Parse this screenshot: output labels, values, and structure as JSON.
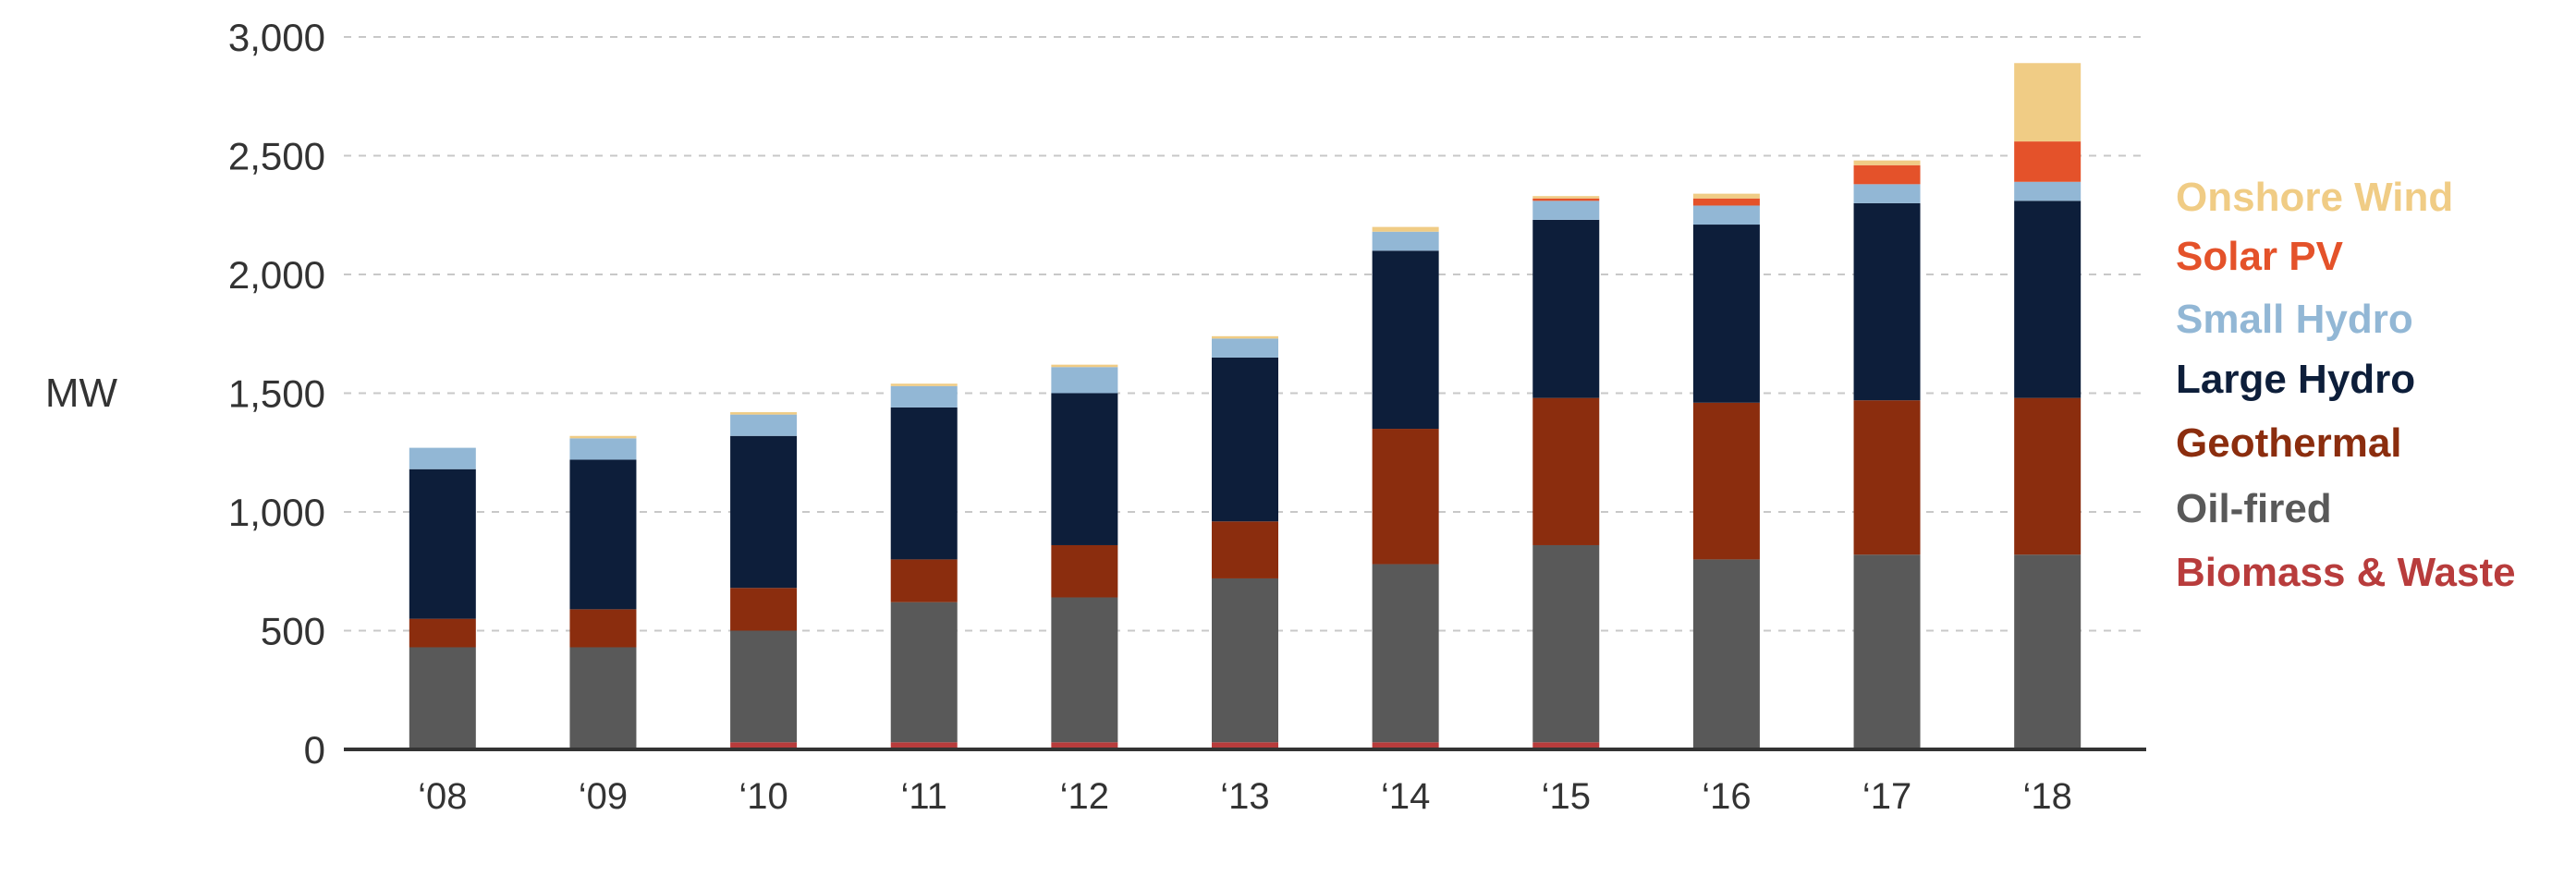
{
  "chart_data": {
    "type": "bar",
    "stacked": true,
    "ylabel": "MW",
    "xlabel": "",
    "ylim": [
      0,
      3000
    ],
    "yticks": [
      0,
      500,
      1000,
      1500,
      2000,
      2500,
      3000
    ],
    "ytick_labels": [
      "0",
      "500",
      "1,000",
      "1,500",
      "2,000",
      "2,500",
      "3,000"
    ],
    "grid": "horizontal dashed",
    "legend_position": "right",
    "categories": [
      "‘08",
      "‘09",
      "‘10",
      "‘11",
      "‘12",
      "‘13",
      "‘14",
      "‘15",
      "‘16",
      "‘17",
      "‘18"
    ],
    "series": [
      {
        "name": "Biomass & Waste",
        "color": "#b83c3c",
        "values": [
          0,
          0,
          30,
          30,
          30,
          30,
          30,
          30,
          0,
          0,
          0
        ]
      },
      {
        "name": "Oil-fired",
        "color": "#595959",
        "values": [
          430,
          430,
          470,
          590,
          610,
          690,
          750,
          830,
          800,
          820,
          820
        ]
      },
      {
        "name": "Geothermal",
        "color": "#8b2d0e",
        "values": [
          120,
          160,
          180,
          180,
          220,
          240,
          570,
          620,
          660,
          650,
          660
        ]
      },
      {
        "name": "Large Hydro",
        "color": "#0d1e3a",
        "values": [
          630,
          630,
          640,
          640,
          640,
          690,
          750,
          750,
          750,
          830,
          830
        ]
      },
      {
        "name": "Small Hydro",
        "color": "#92b7d5",
        "values": [
          90,
          90,
          90,
          90,
          110,
          80,
          80,
          80,
          80,
          80,
          80
        ]
      },
      {
        "name": "Solar PV",
        "color": "#e4522a",
        "values": [
          0,
          0,
          0,
          0,
          0,
          0,
          0,
          10,
          30,
          80,
          170
        ]
      },
      {
        "name": "Onshore Wind",
        "color": "#f0cc85",
        "values": [
          0,
          10,
          10,
          10,
          10,
          10,
          20,
          10,
          20,
          20,
          330
        ]
      }
    ]
  }
}
